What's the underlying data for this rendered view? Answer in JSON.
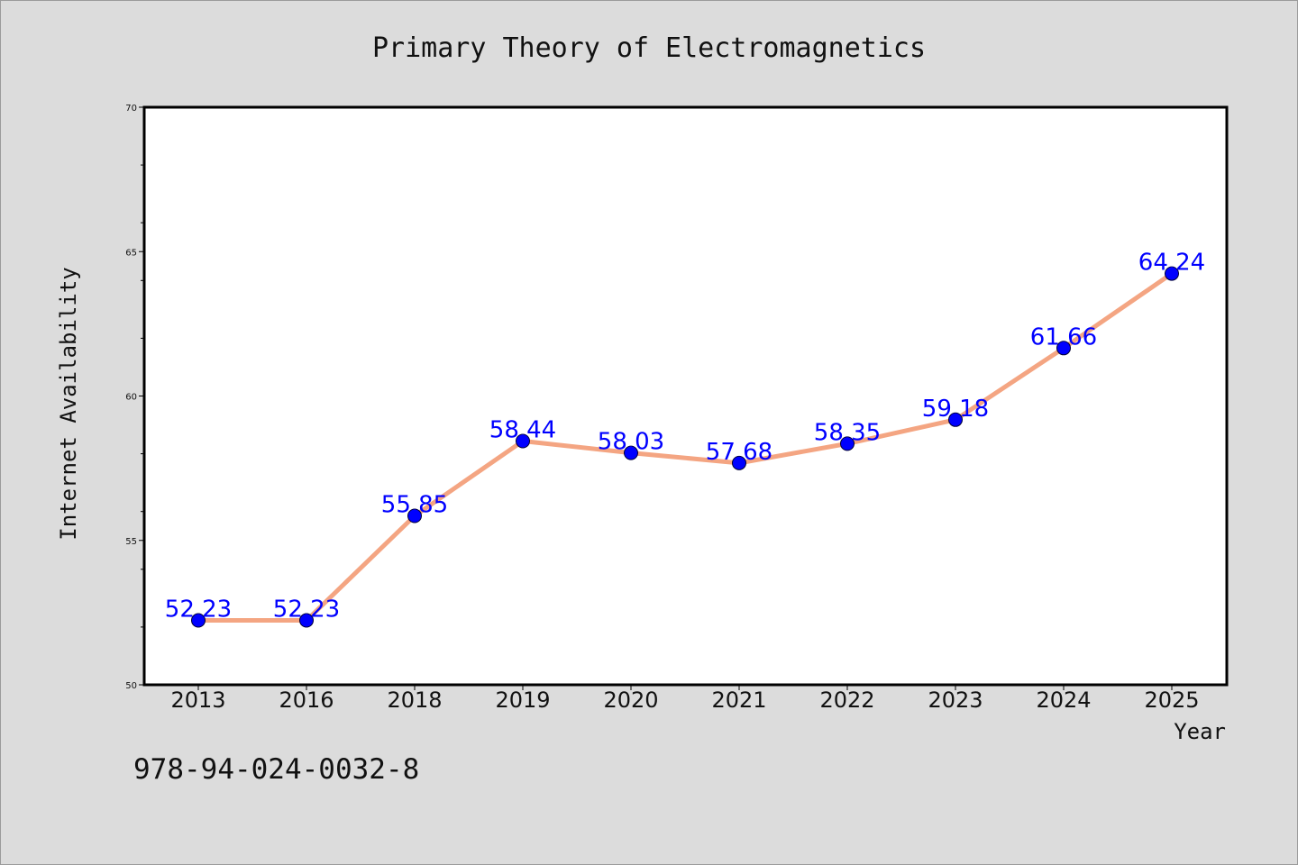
{
  "footer_code": "978-94-024-0032-8",
  "chart_data": {
    "type": "line",
    "title": "Primary Theory of Electromagnetics",
    "xlabel": "Year",
    "ylabel": "Internet Availability",
    "categories": [
      "2013",
      "2016",
      "2018",
      "2019",
      "2020",
      "2021",
      "2022",
      "2023",
      "2024",
      "2025"
    ],
    "values": [
      52.23,
      52.23,
      55.85,
      58.44,
      58.03,
      57.68,
      58.35,
      59.18,
      61.66,
      64.24
    ],
    "ylim": [
      50,
      70
    ],
    "yticks": [
      50,
      55,
      60,
      65,
      70
    ],
    "grid": false,
    "legend": "none",
    "colors": {
      "line": "#f4a582",
      "marker": "#0000ff",
      "data_label": "#0000ff"
    }
  }
}
